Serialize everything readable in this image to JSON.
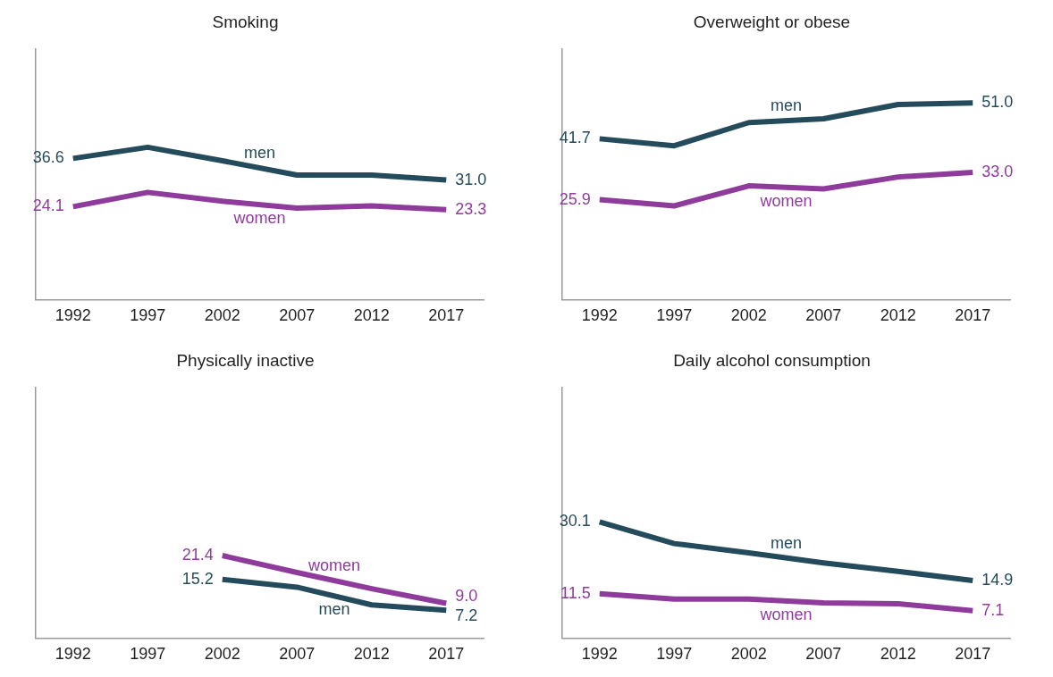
{
  "chart_data": [
    {
      "type": "line",
      "title": "Smoking",
      "categories": [
        "1992",
        "1997",
        "2002",
        "2007",
        "2012",
        "2017"
      ],
      "ylim": [
        0,
        65
      ],
      "tick_labels": "x",
      "grid": false,
      "legend": false,
      "series": [
        {
          "name": "men",
          "color": "#244b5b",
          "values": [
            36.6,
            39.5,
            36.0,
            32.3,
            32.3,
            31.0
          ],
          "value_labels": [
            "36.6",
            null,
            null,
            null,
            null,
            "31.0"
          ]
        },
        {
          "name": "women",
          "color": "#8e3b9b",
          "values": [
            24.1,
            27.8,
            25.5,
            23.7,
            24.3,
            23.3
          ],
          "value_labels": [
            "24.1",
            null,
            null,
            null,
            null,
            "23.3"
          ]
        }
      ]
    },
    {
      "type": "line",
      "title": "Overweight or obese",
      "categories": [
        "1992",
        "1997",
        "2002",
        "2007",
        "2012",
        "2017"
      ],
      "ylim": [
        0,
        65
      ],
      "tick_labels": "x",
      "grid": false,
      "legend": false,
      "series": [
        {
          "name": "men",
          "color": "#244b5b",
          "values": [
            41.7,
            39.9,
            45.9,
            46.9,
            50.6,
            51.0
          ],
          "value_labels": [
            "41.7",
            null,
            null,
            null,
            null,
            "51.0"
          ]
        },
        {
          "name": "women",
          "color": "#8e3b9b",
          "values": [
            25.9,
            24.3,
            29.5,
            28.7,
            31.8,
            33.0
          ],
          "value_labels": [
            "25.9",
            null,
            null,
            null,
            null,
            "33.0"
          ]
        }
      ]
    },
    {
      "type": "line",
      "title": "Physically inactive",
      "categories": [
        "1992",
        "1997",
        "2002",
        "2007",
        "2012",
        "2017"
      ],
      "ylim": [
        0,
        65
      ],
      "tick_labels": "x",
      "grid": false,
      "legend": false,
      "series": [
        {
          "name": "men",
          "color": "#244b5b",
          "values": [
            null,
            null,
            15.2,
            13.2,
            8.6,
            7.2
          ],
          "value_labels": [
            null,
            null,
            "15.2",
            null,
            null,
            "7.2"
          ]
        },
        {
          "name": "women",
          "color": "#8e3b9b",
          "values": [
            null,
            null,
            21.4,
            17.0,
            12.8,
            9.0
          ],
          "value_labels": [
            null,
            null,
            "21.4",
            null,
            null,
            "9.0"
          ]
        }
      ]
    },
    {
      "type": "line",
      "title": "Daily alcohol consumption",
      "categories": [
        "1992",
        "1997",
        "2002",
        "2007",
        "2012",
        "2017"
      ],
      "ylim": [
        0,
        65
      ],
      "tick_labels": "x",
      "grid": false,
      "legend": false,
      "series": [
        {
          "name": "men",
          "color": "#244b5b",
          "values": [
            30.1,
            24.5,
            22.1,
            19.5,
            17.3,
            14.9
          ],
          "value_labels": [
            "30.1",
            null,
            null,
            null,
            null,
            "14.9"
          ]
        },
        {
          "name": "women",
          "color": "#8e3b9b",
          "values": [
            11.5,
            10.1,
            10.1,
            9.1,
            8.9,
            7.1
          ],
          "value_labels": [
            "11.5",
            null,
            null,
            null,
            null,
            "7.1"
          ]
        }
      ]
    }
  ]
}
